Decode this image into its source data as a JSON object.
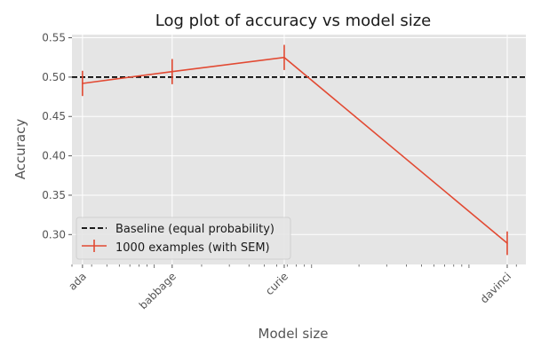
{
  "chart_data": {
    "type": "line",
    "title": "Log plot of accuracy vs model size",
    "xlabel": "Model size",
    "ylabel": "Accuracy",
    "xscale": "log",
    "categories": [
      "ada",
      "babbage",
      "curie",
      "davinci"
    ],
    "x_params_billions": [
      0.35,
      1.3,
      6.7,
      175
    ],
    "xlim_billions": [
      0.3,
      230
    ],
    "ylim": [
      0.262,
      0.554
    ],
    "yticks": [
      "0.30",
      "0.35",
      "0.40",
      "0.45",
      "0.50",
      "0.55"
    ],
    "grid": true,
    "legend": {
      "position": "lower-left",
      "entries": [
        "Baseline (equal probability)",
        "1000 examples (with SEM)"
      ]
    },
    "series": [
      {
        "name": "1000 examples (with SEM)",
        "color": "#E24A33",
        "values": [
          0.492,
          0.507,
          0.525,
          0.289
        ],
        "errors": [
          0.016,
          0.016,
          0.016,
          0.015
        ]
      }
    ],
    "baseline": {
      "name": "Baseline (equal probability)",
      "value": 0.5,
      "color": "#000000",
      "style": "dashed"
    },
    "colors": {
      "plot_background": "#E5E5E5",
      "grid": "#FFFFFF"
    }
  }
}
